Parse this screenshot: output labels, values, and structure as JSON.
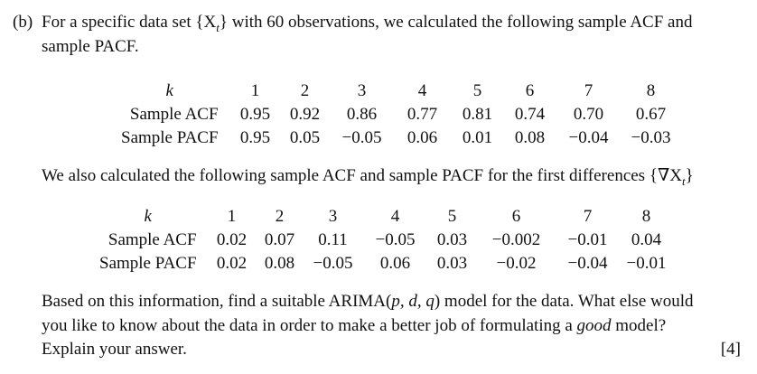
{
  "question": {
    "part_label": "(b)",
    "intro_line1": "For a specific data set {X",
    "intro_line1_sub": "t",
    "intro_line1_end": "} with 60 observations, we calculated the following sample ACF and",
    "intro_line2": "sample PACF."
  },
  "table1": {
    "k_label": "k",
    "acf_label": "Sample ACF",
    "pacf_label": "Sample PACF",
    "k": [
      "1",
      "2",
      "3",
      "4",
      "5",
      "6",
      "7",
      "8"
    ],
    "acf": [
      "0.95",
      "0.92",
      "0.86",
      "0.77",
      "0.81",
      "0.74",
      "0.70",
      "0.67"
    ],
    "pacf": [
      "0.95",
      "0.05",
      "−0.05",
      "0.06",
      "0.01",
      "0.08",
      "−0.04",
      "−0.03"
    ]
  },
  "middle": {
    "text": "We also calculated the following sample ACF and sample PACF for the first differences {∇X",
    "sub": "t",
    "end": "}"
  },
  "table2": {
    "k_label": "k",
    "acf_label": "Sample ACF",
    "pacf_label": "Sample PACF",
    "k": [
      "1",
      "2",
      "3",
      "4",
      "5",
      "6",
      "7",
      "8"
    ],
    "acf": [
      "0.02",
      "0.07",
      "0.11",
      "−0.05",
      "0.03",
      "−0.002",
      "−0.01",
      "0.04"
    ],
    "pacf": [
      "0.02",
      "0.08",
      "−0.05",
      "0.06",
      "0.03",
      "−0.02",
      "−0.04",
      "−0.01"
    ]
  },
  "closing": {
    "line1_a": "Based on this information, find a suitable ARIMA(",
    "line1_b": "p, d, q",
    "line1_c": ") model for the data. What else would",
    "line2_a": "you like to know about the data in order to make a better job of formulating a ",
    "line2_b": "good",
    "line2_c": " model?",
    "line3": "Explain your answer.",
    "marks": "[4]"
  }
}
